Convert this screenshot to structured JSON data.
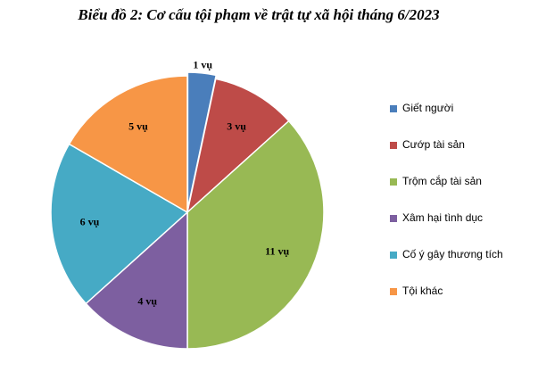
{
  "chart_data": {
    "type": "pie",
    "title": "Biểu đồ 2: Cơ cấu tội phạm về trật tự xã hội tháng 6/2023",
    "categories": [
      "Giết người",
      "Cướp tài sản",
      "Trộm cắp tài sản",
      "Xâm hại tình dục",
      "Cố ý gây thương tích",
      "Tội khác"
    ],
    "values": [
      1,
      3,
      11,
      4,
      6,
      5
    ],
    "value_labels": [
      "1 vụ",
      "3 vụ",
      "11 vụ",
      "4 vụ",
      "6 vụ",
      "5 vụ"
    ],
    "colors": [
      "#4a7ebb",
      "#be4b48",
      "#98b954",
      "#7d5fa0",
      "#46aac5",
      "#f79646"
    ],
    "legend": "right"
  }
}
